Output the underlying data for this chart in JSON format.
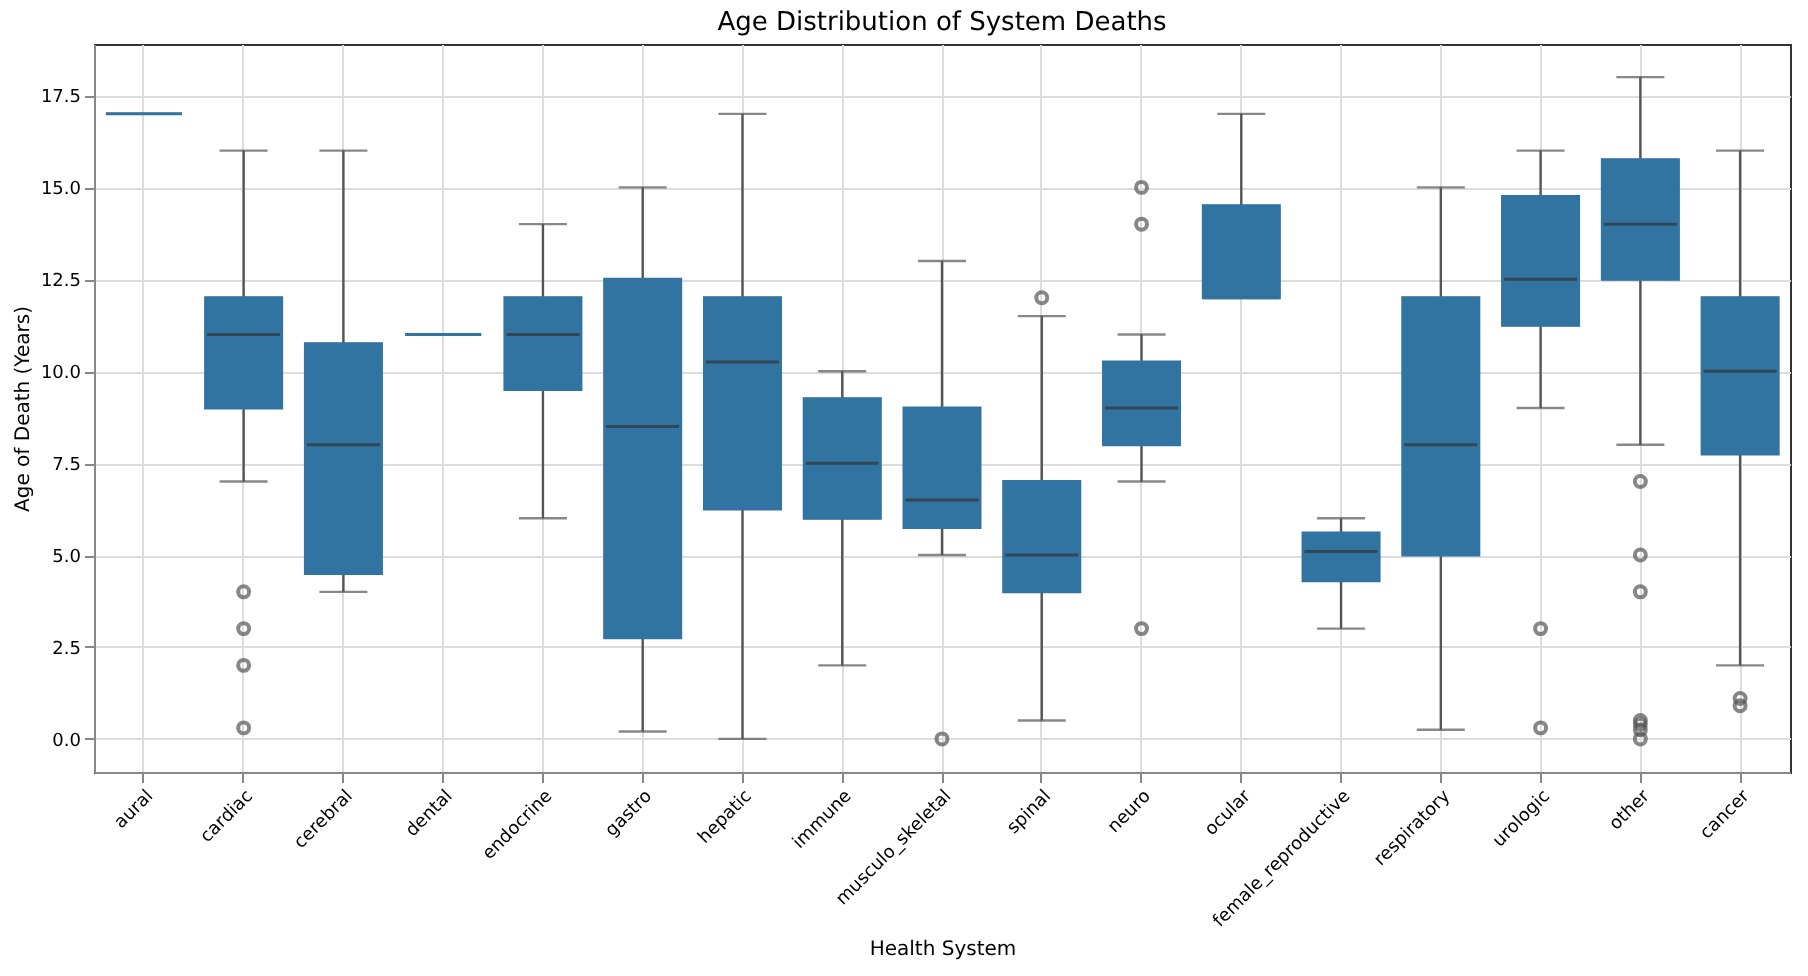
{
  "chart_data": {
    "type": "box",
    "title": "Age Distribution of System Deaths",
    "xlabel": "Health System",
    "ylabel": "Age of Death (Years)",
    "categories": [
      "aural",
      "cardiac",
      "cerebral",
      "dental",
      "endocrine",
      "gastro",
      "hepatic",
      "immune",
      "musculo_skeletal",
      "spinal",
      "neuro",
      "ocular",
      "female_reproductive",
      "respiratory",
      "urologic",
      "other",
      "cancer"
    ],
    "ylim": [
      -0.9,
      18.9
    ],
    "yticks": [
      {
        "value": 0,
        "label": "0.0"
      },
      2.5,
      {
        "value": 5,
        "label": "5.0"
      },
      7.5,
      {
        "value": 10,
        "label": "10.0"
      },
      12.5,
      {
        "value": 15,
        "label": "15.0"
      },
      17.5
    ],
    "grid": true,
    "series": [
      {
        "color": "#3274a1",
        "boxes": [
          {
            "low": 17,
            "q1": 17,
            "median": 17,
            "q3": 17,
            "high": 17
          },
          {
            "low": 7,
            "q1": 9,
            "median": 11,
            "q3": 12,
            "high": 16,
            "outliers": [
              4,
              3,
              2,
              0.3
            ]
          },
          {
            "low": 4,
            "q1": 4.5,
            "median": 8,
            "q3": 10.75,
            "high": 16
          },
          {
            "low": 11,
            "q1": 11,
            "median": 11,
            "q3": 11,
            "high": 11
          },
          {
            "low": 6,
            "q1": 9.5,
            "median": 11,
            "q3": 12,
            "high": 14
          },
          {
            "low": 0.2,
            "q1": 2.75,
            "median": 8.5,
            "q3": 12.5,
            "high": 15
          },
          {
            "low": 0,
            "q1": 6.25,
            "median": 10.25,
            "q3": 12,
            "high": 17
          },
          {
            "low": 2,
            "q1": 6,
            "median": 7.5,
            "q3": 9.25,
            "high": 10
          },
          {
            "low": 5,
            "q1": 5.75,
            "median": 6.5,
            "q3": 9,
            "high": 13,
            "outliers": [
              0
            ]
          },
          {
            "low": 0.5,
            "q1": 4,
            "median": 5,
            "q3": 7,
            "high": 11.5,
            "outliers": [
              12
            ]
          },
          {
            "low": 7,
            "q1": 8,
            "median": 9,
            "q3": 10.25,
            "high": 11,
            "outliers": [
              15,
              14,
              3
            ]
          },
          {
            "low": 12,
            "q1": 12,
            "median": 12,
            "q3": 14.5,
            "high": 17
          },
          {
            "low": 3,
            "q1": 4.3,
            "median": 5.1,
            "q3": 5.6,
            "high": 6
          },
          {
            "low": 0.25,
            "q1": 5,
            "median": 8,
            "q3": 12,
            "high": 15
          },
          {
            "low": 9,
            "q1": 11.25,
            "median": 12.5,
            "q3": 14.75,
            "high": 16,
            "outliers": [
              3,
              0.3
            ]
          },
          {
            "low": 8,
            "q1": 12.5,
            "median": 14,
            "q3": 15.75,
            "high": 18,
            "outliers": [
              7,
              5,
              4,
              0.5,
              0.4,
              0.25,
              0
            ]
          },
          {
            "low": 2,
            "q1": 7.75,
            "median": 10,
            "q3": 12,
            "high": 16,
            "outliers": [
              1.1,
              0.9
            ]
          }
        ]
      }
    ]
  }
}
